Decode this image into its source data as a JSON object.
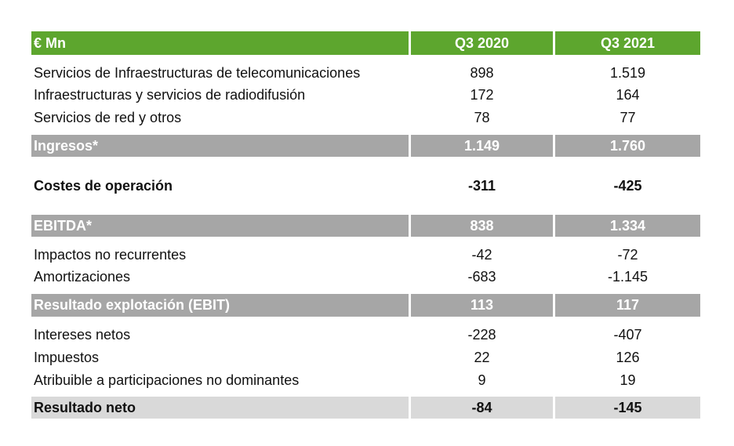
{
  "table": {
    "header": [
      "€ Mn",
      "Q3 2020",
      "Q3 2021"
    ],
    "rows": [
      [
        "Servicios de Infraestructuras de telecomunicaciones",
        "898",
        "1.519"
      ],
      [
        "Infraestructuras y servicios de radiodifusión",
        "172",
        "164"
      ],
      [
        "Servicios de red y otros",
        "78",
        "77"
      ],
      [
        "Ingresos*",
        "1.149",
        "1.760"
      ],
      [
        "Costes de operación",
        "-311",
        "-425"
      ],
      [
        "EBITDA*",
        "838",
        "1.334"
      ],
      [
        "Impactos no recurrentes",
        "-42",
        "-72"
      ],
      [
        "Amortizaciones",
        "-683",
        "-1.145"
      ],
      [
        "Resultado explotación (EBIT)",
        "113",
        "117"
      ],
      [
        "Intereses netos",
        "-228",
        "-407"
      ],
      [
        "Impuestos",
        "22",
        "126"
      ],
      [
        "Atribuible a participaciones no dominantes",
        "9",
        "19"
      ],
      [
        "Resultado neto",
        "-84",
        "-145"
      ]
    ]
  }
}
